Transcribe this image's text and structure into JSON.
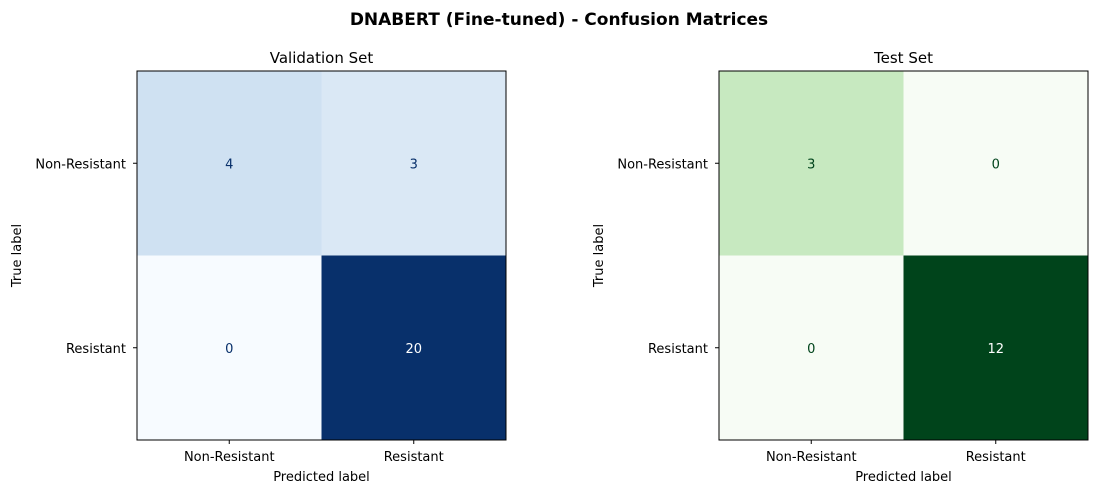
{
  "figure": {
    "suptitle": "DNABERT (Fine-tuned) - Confusion Matrices"
  },
  "chart_data": [
    {
      "type": "heatmap",
      "title": "Validation Set",
      "xlabel": "Predicted label",
      "ylabel": "True label",
      "x_categories": [
        "Non-Resistant",
        "Resistant"
      ],
      "y_categories": [
        "Non-Resistant",
        "Resistant"
      ],
      "values": [
        [
          4,
          3
        ],
        [
          0,
          20
        ]
      ],
      "colormap": "Blues",
      "cell_colors": [
        [
          "#cfe1f2",
          "#dae8f5"
        ],
        [
          "#f7fbff",
          "#08306b"
        ]
      ],
      "text_colors": [
        [
          "#08306b",
          "#08306b"
        ],
        [
          "#08306b",
          "#ffffff"
        ]
      ],
      "colorbar": false
    },
    {
      "type": "heatmap",
      "title": "Test Set",
      "xlabel": "Predicted label",
      "ylabel": "True label",
      "x_categories": [
        "Non-Resistant",
        "Resistant"
      ],
      "y_categories": [
        "Non-Resistant",
        "Resistant"
      ],
      "values": [
        [
          3,
          0
        ],
        [
          0,
          12
        ]
      ],
      "colormap": "Greens",
      "cell_colors": [
        [
          "#c7e9c0",
          "#f7fcf5"
        ],
        [
          "#f7fcf5",
          "#00441b"
        ]
      ],
      "text_colors": [
        [
          "#00441b",
          "#00441b"
        ],
        [
          "#00441b",
          "#ffffff"
        ]
      ],
      "colorbar": false
    }
  ]
}
